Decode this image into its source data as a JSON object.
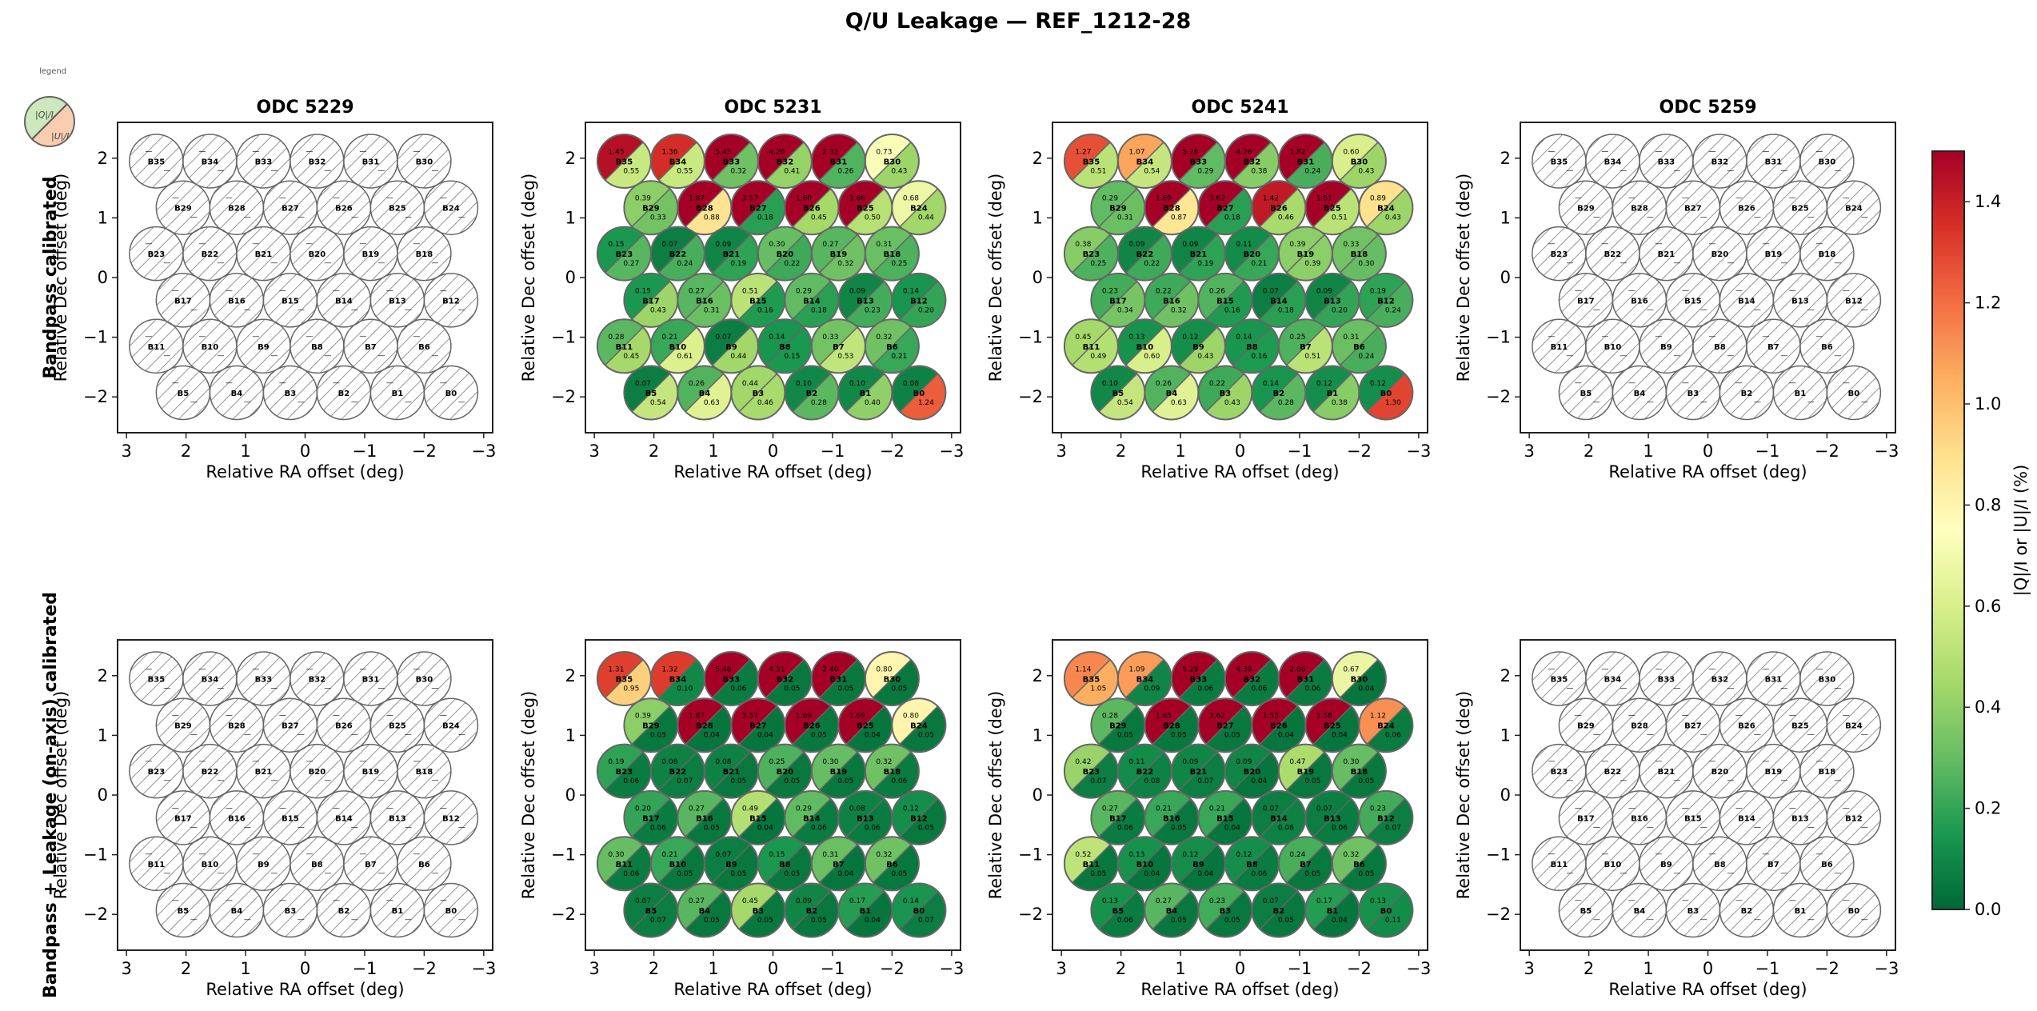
{
  "chart_data": {
    "type": "heatmap",
    "title": "Q/U Leakage — REF_1212-28",
    "legend": {
      "label": "legend",
      "upper_label": "|Q|/I",
      "lower_label": "|U|/I",
      "upper_color": "#cde8bc",
      "lower_color": "#f8cdb0"
    },
    "colorbar": {
      "label": "|Q|/I  or  |U|/I  (%)",
      "colormap": "RdYlGn_r",
      "range": [
        0.0,
        1.5
      ],
      "ticks": [
        "0.0",
        "0.2",
        "0.4",
        "0.6",
        "0.8",
        "1.0",
        "1.2",
        "1.4"
      ],
      "tick_values": [
        0.0,
        0.2,
        0.4,
        0.6,
        0.8,
        1.0,
        1.2,
        1.4
      ]
    },
    "xlabel": "Relative RA offset (deg)",
    "ylabel": "Relative Dec offset (deg)",
    "xlim": [
      3.15,
      -3.15
    ],
    "ylim": [
      -2.6,
      2.6
    ],
    "xticks": [
      "3",
      "2",
      "1",
      "0",
      "−1",
      "−2",
      "−3"
    ],
    "xtick_values": [
      3,
      2,
      1,
      0,
      -1,
      -2,
      -3
    ],
    "yticks": [
      "2",
      "1",
      "0",
      "−1",
      "−2"
    ],
    "ytick_values": [
      2,
      1,
      0,
      -1,
      -2
    ],
    "beam_layout": {
      "B35": [
        2.5,
        1.95
      ],
      "B34": [
        1.6,
        1.95
      ],
      "B33": [
        0.7,
        1.95
      ],
      "B32": [
        -0.2,
        1.95
      ],
      "B31": [
        -1.1,
        1.95
      ],
      "B30": [
        -2.0,
        1.95
      ],
      "B29": [
        2.05,
        1.17
      ],
      "B28": [
        1.15,
        1.17
      ],
      "B27": [
        0.25,
        1.17
      ],
      "B26": [
        -0.65,
        1.17
      ],
      "B25": [
        -1.55,
        1.17
      ],
      "B24": [
        -2.45,
        1.17
      ],
      "B23": [
        2.5,
        0.4
      ],
      "B22": [
        1.6,
        0.4
      ],
      "B21": [
        0.7,
        0.4
      ],
      "B20": [
        -0.2,
        0.4
      ],
      "B19": [
        -1.1,
        0.4
      ],
      "B18": [
        -2.0,
        0.4
      ],
      "B17": [
        2.05,
        -0.38
      ],
      "B16": [
        1.15,
        -0.38
      ],
      "B15": [
        0.25,
        -0.38
      ],
      "B14": [
        -0.65,
        -0.38
      ],
      "B13": [
        -1.55,
        -0.38
      ],
      "B12": [
        -2.45,
        -0.38
      ],
      "B11": [
        2.5,
        -1.15
      ],
      "B10": [
        1.6,
        -1.15
      ],
      "B9": [
        0.7,
        -1.15
      ],
      "B8": [
        -0.2,
        -1.15
      ],
      "B7": [
        -1.1,
        -1.15
      ],
      "B6": [
        -2.0,
        -1.15
      ],
      "B5": [
        2.05,
        -1.93
      ],
      "B4": [
        1.15,
        -1.93
      ],
      "B3": [
        0.25,
        -1.93
      ],
      "B2": [
        -0.65,
        -1.93
      ],
      "B1": [
        -1.55,
        -1.93
      ],
      "B0": [
        -2.45,
        -1.93
      ]
    },
    "beam_radius_deg": 0.45,
    "beam_order": [
      "B35",
      "B34",
      "B33",
      "B32",
      "B31",
      "B30",
      "B29",
      "B28",
      "B27",
      "B26",
      "B25",
      "B24",
      "B23",
      "B22",
      "B21",
      "B20",
      "B19",
      "B18",
      "B17",
      "B16",
      "B15",
      "B14",
      "B13",
      "B12",
      "B11",
      "B10",
      "B9",
      "B8",
      "B7",
      "B6",
      "B5",
      "B4",
      "B3",
      "B2",
      "B1",
      "B0"
    ],
    "missing_marker": "—",
    "rows": [
      {
        "label_bold": "Bandpass calibrated",
        "panels": [
          {
            "title": "ODC 5229",
            "has_data": false,
            "beams": {}
          },
          {
            "title": "ODC 5231",
            "has_data": true,
            "beams": {
              "B35": [
                1.45,
                0.55
              ],
              "B34": [
                1.36,
                0.55
              ],
              "B33": [
                5.45,
                0.32
              ],
              "B32": [
                4.26,
                0.41
              ],
              "B31": [
                2.31,
                0.26
              ],
              "B30": [
                0.73,
                0.43
              ],
              "B29": [
                0.39,
                0.33
              ],
              "B28": [
                1.87,
                0.88
              ],
              "B27": [
                3.57,
                0.18
              ],
              "B26": [
                1.6,
                0.45
              ],
              "B25": [
                1.66,
                0.5
              ],
              "B24": [
                0.68,
                0.44
              ],
              "B23": [
                0.15,
                0.27
              ],
              "B22": [
                0.07,
                0.24
              ],
              "B21": [
                0.09,
                0.19
              ],
              "B20": [
                0.3,
                0.22
              ],
              "B19": [
                0.27,
                0.32
              ],
              "B18": [
                0.31,
                0.25
              ],
              "B17": [
                0.15,
                0.43
              ],
              "B16": [
                0.27,
                0.31
              ],
              "B15": [
                0.51,
                0.16
              ],
              "B14": [
                0.29,
                0.18
              ],
              "B13": [
                0.09,
                0.23
              ],
              "B12": [
                0.14,
                0.2
              ],
              "B11": [
                0.28,
                0.45
              ],
              "B10": [
                0.21,
                0.61
              ],
              "B9": [
                0.07,
                0.44
              ],
              "B8": [
                0.14,
                0.15
              ],
              "B7": [
                0.33,
                0.53
              ],
              "B6": [
                0.32,
                0.21
              ],
              "B5": [
                0.07,
                0.54
              ],
              "B4": [
                0.26,
                0.63
              ],
              "B3": [
                0.44,
                0.46
              ],
              "B2": [
                0.1,
                0.28
              ],
              "B1": [
                0.1,
                0.4
              ],
              "B0": [
                0.08,
                1.24
              ]
            }
          },
          {
            "title": "ODC 5241",
            "has_data": true,
            "beams": {
              "B35": [
                1.27,
                0.51
              ],
              "B34": [
                1.07,
                0.54
              ],
              "B33": [
                5.26,
                0.29
              ],
              "B32": [
                4.26,
                0.38
              ],
              "B31": [
                1.82,
                0.24
              ],
              "B30": [
                0.6,
                0.43
              ],
              "B29": [
                0.29,
                0.31
              ],
              "B28": [
                1.69,
                0.87
              ],
              "B27": [
                3.62,
                0.18
              ],
              "B26": [
                1.42,
                0.46
              ],
              "B25": [
                1.51,
                0.51
              ],
              "B24": [
                0.89,
                0.43
              ],
              "B23": [
                0.38,
                0.25
              ],
              "B22": [
                0.09,
                0.22
              ],
              "B21": [
                0.09,
                0.19
              ],
              "B20": [
                0.11,
                0.21
              ],
              "B19": [
                0.39,
                0.39
              ],
              "B18": [
                0.33,
                0.3
              ],
              "B17": [
                0.23,
                0.34
              ],
              "B16": [
                0.22,
                0.32
              ],
              "B15": [
                0.26,
                0.16
              ],
              "B14": [
                0.07,
                0.18
              ],
              "B13": [
                0.09,
                0.2
              ],
              "B12": [
                0.19,
                0.24
              ],
              "B11": [
                0.45,
                0.49
              ],
              "B10": [
                0.13,
                0.6
              ],
              "B9": [
                0.12,
                0.43
              ],
              "B8": [
                0.14,
                0.16
              ],
              "B7": [
                0.25,
                0.51
              ],
              "B6": [
                0.31,
                0.24
              ],
              "B5": [
                0.1,
                0.54
              ],
              "B4": [
                0.26,
                0.63
              ],
              "B3": [
                0.22,
                0.43
              ],
              "B2": [
                0.14,
                0.28
              ],
              "B1": [
                0.12,
                0.38
              ],
              "B0": [
                0.12,
                1.3
              ]
            }
          },
          {
            "title": "ODC 5259",
            "has_data": false,
            "beams": {}
          }
        ]
      },
      {
        "label_bold": "Bandpass + Leakage (on-axis) calibrated",
        "panels": [
          {
            "title": "",
            "has_data": false,
            "beams": {}
          },
          {
            "title": "",
            "has_data": true,
            "beams": {
              "B35": [
                1.31,
                0.95
              ],
              "B34": [
                1.32,
                0.1
              ],
              "B33": [
                5.48,
                0.06
              ],
              "B32": [
                4.31,
                0.05
              ],
              "B31": [
                2.4,
                0.05
              ],
              "B30": [
                0.8,
                0.05
              ],
              "B29": [
                0.39,
                0.05
              ],
              "B28": [
                1.87,
                0.04
              ],
              "B27": [
                3.57,
                0.04
              ],
              "B26": [
                1.69,
                0.05
              ],
              "B25": [
                1.69,
                0.04
              ],
              "B24": [
                0.8,
                0.05
              ],
              "B23": [
                0.19,
                0.06
              ],
              "B22": [
                0.08,
                0.07
              ],
              "B21": [
                0.08,
                0.05
              ],
              "B20": [
                0.25,
                0.05
              ],
              "B19": [
                0.3,
                0.05
              ],
              "B18": [
                0.32,
                0.06
              ],
              "B17": [
                0.2,
                0.06
              ],
              "B16": [
                0.27,
                0.05
              ],
              "B15": [
                0.49,
                0.04
              ],
              "B14": [
                0.29,
                0.06
              ],
              "B13": [
                0.08,
                0.06
              ],
              "B12": [
                0.12,
                0.05
              ],
              "B11": [
                0.3,
                0.06
              ],
              "B10": [
                0.21,
                0.05
              ],
              "B9": [
                0.07,
                0.05
              ],
              "B8": [
                0.15,
                0.05
              ],
              "B7": [
                0.31,
                0.04
              ],
              "B6": [
                0.32,
                0.05
              ],
              "B5": [
                0.07,
                0.07
              ],
              "B4": [
                0.27,
                0.05
              ],
              "B3": [
                0.45,
                0.05
              ],
              "B2": [
                0.09,
                0.05
              ],
              "B1": [
                0.17,
                0.04
              ],
              "B0": [
                0.14,
                0.07
              ]
            }
          },
          {
            "title": "",
            "has_data": true,
            "beams": {
              "B35": [
                1.14,
                1.05
              ],
              "B34": [
                1.09,
                0.09
              ],
              "B33": [
                5.29,
                0.06
              ],
              "B32": [
                4.39,
                0.06
              ],
              "B31": [
                2.06,
                0.06
              ],
              "B30": [
                0.67,
                0.04
              ],
              "B29": [
                0.28,
                0.05
              ],
              "B28": [
                1.65,
                0.05
              ],
              "B27": [
                3.62,
                0.05
              ],
              "B26": [
                1.53,
                0.04
              ],
              "B25": [
                1.58,
                0.04
              ],
              "B24": [
                1.12,
                0.06
              ],
              "B23": [
                0.42,
                0.07
              ],
              "B22": [
                0.11,
                0.08
              ],
              "B21": [
                0.09,
                0.07
              ],
              "B20": [
                0.09,
                0.04
              ],
              "B19": [
                0.47,
                0.05
              ],
              "B18": [
                0.3,
                0.05
              ],
              "B17": [
                0.27,
                0.06
              ],
              "B16": [
                0.21,
                0.05
              ],
              "B15": [
                0.21,
                0.04
              ],
              "B14": [
                0.07,
                0.08
              ],
              "B13": [
                0.07,
                0.06
              ],
              "B12": [
                0.23,
                0.07
              ],
              "B11": [
                0.52,
                0.05
              ],
              "B10": [
                0.13,
                0.04
              ],
              "B9": [
                0.12,
                0.04
              ],
              "B8": [
                0.12,
                0.06
              ],
              "B7": [
                0.24,
                0.05
              ],
              "B6": [
                0.32,
                0.05
              ],
              "B5": [
                0.13,
                0.06
              ],
              "B4": [
                0.27,
                0.05
              ],
              "B3": [
                0.23,
                0.05
              ],
              "B2": [
                0.07,
                0.05
              ],
              "B1": [
                0.17,
                0.04
              ],
              "B0": [
                0.13,
                0.11
              ]
            }
          },
          {
            "title": "",
            "has_data": false,
            "beams": {}
          }
        ]
      }
    ]
  }
}
